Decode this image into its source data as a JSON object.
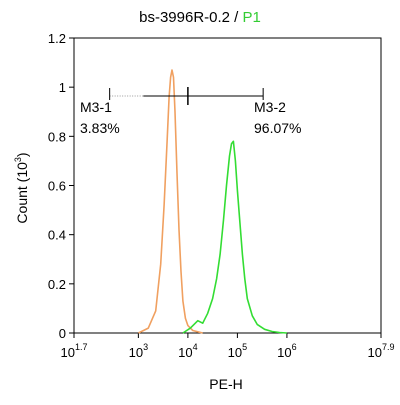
{
  "chart_data": {
    "type": "line",
    "title": "bs-3996R-0.2 / P1",
    "title_main": "bs-3996R-0.2 /",
    "title_gate": "P1",
    "title_gate_color": "#33cc33",
    "xlabel": "PE-H",
    "ylabel": "Count (10",
    "ylabel_exp": "3",
    "ylabel_close": ")",
    "x_scale": "log",
    "xlim": [
      1.7,
      7.9
    ],
    "ylim": [
      0,
      1.2
    ],
    "x_ticks": [
      {
        "base": "10",
        "exp": "1.7",
        "value": 1.7
      },
      {
        "base": "10",
        "exp": "3",
        "value": 3
      },
      {
        "base": "10",
        "exp": "4",
        "value": 4
      },
      {
        "base": "10",
        "exp": "5",
        "value": 5
      },
      {
        "base": "10",
        "exp": "6",
        "value": 6
      },
      {
        "base": "10",
        "exp": "7.9",
        "value": 7.9
      }
    ],
    "y_ticks": [
      "0",
      "0.2",
      "0.4",
      "0.6",
      "0.8",
      "1",
      "1.2"
    ],
    "y_tick_values": [
      0,
      0.2,
      0.4,
      0.6,
      0.8,
      1.0,
      1.2
    ],
    "series": [
      {
        "color": "#f0a060",
        "x": [
          3.0,
          3.2,
          3.35,
          3.45,
          3.52,
          3.58,
          3.62,
          3.65,
          3.68,
          3.71,
          3.74,
          3.78,
          3.82,
          3.86,
          3.9,
          3.95,
          4.0,
          4.1,
          4.2,
          4.3
        ],
        "y": [
          0.0,
          0.02,
          0.09,
          0.28,
          0.52,
          0.78,
          0.96,
          1.04,
          1.07,
          1.04,
          0.9,
          0.65,
          0.42,
          0.25,
          0.13,
          0.06,
          0.03,
          0.01,
          0.005,
          0.0
        ]
      },
      {
        "color": "#33dd33",
        "x": [
          3.9,
          4.05,
          4.2,
          4.3,
          4.4,
          4.5,
          4.58,
          4.65,
          4.72,
          4.78,
          4.84,
          4.88,
          4.92,
          4.96,
          5.0,
          5.05,
          5.1,
          5.15,
          5.2,
          5.3,
          5.4,
          5.55,
          5.7,
          5.85,
          6.0
        ],
        "y": [
          0.0,
          0.02,
          0.05,
          0.04,
          0.08,
          0.14,
          0.22,
          0.32,
          0.46,
          0.6,
          0.72,
          0.77,
          0.78,
          0.7,
          0.58,
          0.45,
          0.32,
          0.22,
          0.14,
          0.07,
          0.035,
          0.015,
          0.006,
          0.002,
          0.0
        ]
      }
    ],
    "markers": [
      {
        "label": "M3-1",
        "percent": "3.83%",
        "from": 2.42,
        "to": 4.0
      },
      {
        "label": "M3-2",
        "percent": "96.07%",
        "from": 4.0,
        "to": 5.52
      }
    ]
  }
}
